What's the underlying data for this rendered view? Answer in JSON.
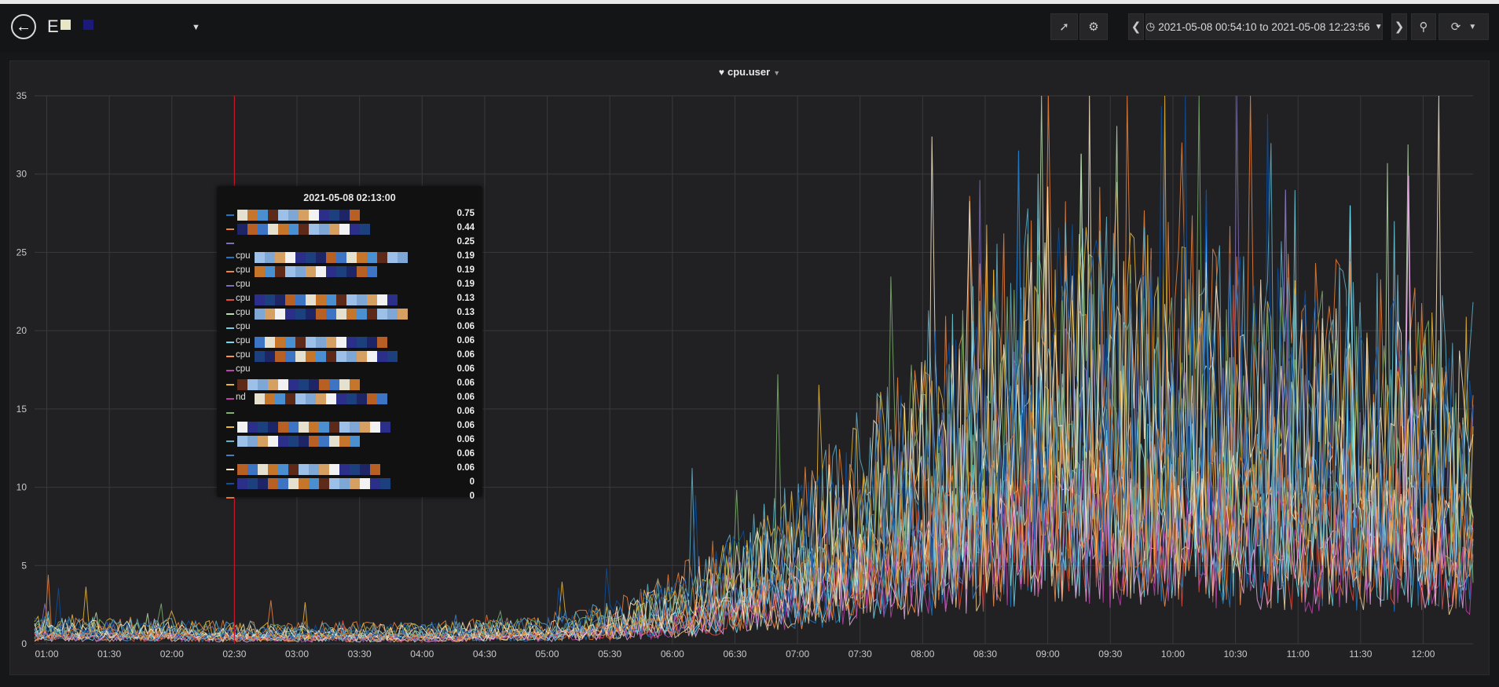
{
  "header": {
    "dashboard_title": "E",
    "time_range": "2021-05-08 00:54:10 to 2021-05-08 12:23:56"
  },
  "icons": {
    "back": "arrow-left-icon",
    "share": "share-icon",
    "settings": "gear-icon",
    "time_back": "chevron-left-icon",
    "clock": "clock-icon",
    "time_forward": "chevron-right-icon",
    "zoom_out": "zoom-out-icon",
    "refresh": "refresh-icon",
    "panel_title": "heart-icon"
  },
  "panel": {
    "title": "cpu.user"
  },
  "chart_data": {
    "type": "line",
    "title": "cpu.user",
    "xlabel": "",
    "ylabel": "",
    "x_range": [
      "2021-05-08 00:54:10",
      "2021-05-08 12:23:56"
    ],
    "ylim": [
      0,
      35
    ],
    "y_ticks": [
      0,
      5,
      10,
      15,
      20,
      25,
      30,
      35
    ],
    "x_ticks": [
      "01:00",
      "01:30",
      "02:00",
      "02:30",
      "03:00",
      "03:30",
      "04:00",
      "04:30",
      "05:00",
      "05:30",
      "06:00",
      "06:30",
      "07:00",
      "07:30",
      "08:00",
      "08:30",
      "09:00",
      "09:30",
      "10:00",
      "10:30",
      "11:00",
      "11:30",
      "12:00"
    ],
    "grid": true,
    "legend": "none",
    "crosshair_time": "2021-05-08 02:30",
    "series_colors": [
      "#1f78c1",
      "#ef843c",
      "#806eb7",
      "#e24d42",
      "#b7dbab",
      "#6ed0e0",
      "#70dbed",
      "#f9934e",
      "#e5a8e2",
      "#eab839",
      "#ba43a9",
      "#7eb26d",
      "#f4d598",
      "#64b0c8",
      "#447ebc",
      "#fceaca",
      "#0a50a1",
      "#e0752d"
    ],
    "series_profile_time": [
      "01:00",
      "02:00",
      "03:00",
      "04:00",
      "05:00",
      "05:30",
      "06:00",
      "06:30",
      "07:00",
      "07:30",
      "08:00",
      "08:30",
      "09:00",
      "09:30",
      "10:00",
      "10:30",
      "11:00",
      "11:30",
      "12:00",
      "12:20"
    ],
    "series_profile_value": [
      0.8,
      0.7,
      0.6,
      0.6,
      0.8,
      1.2,
      2.0,
      3.2,
      4.6,
      6.5,
      9.0,
      11.0,
      12.5,
      12.5,
      12.0,
      11.5,
      11.0,
      10.5,
      10.0,
      9.5
    ],
    "peaks": [
      {
        "time": "08:46",
        "value": 31.5
      },
      {
        "time": "09:16",
        "value": 31.3
      },
      {
        "time": "11:53",
        "value": 29.9
      },
      {
        "time": "09:00",
        "value": 29.2
      },
      {
        "time": "10:16",
        "value": 29.0
      },
      {
        "time": "10:54",
        "value": 29.0
      },
      {
        "time": "11:25",
        "value": 28.0
      }
    ]
  },
  "tooltip": {
    "time": "2021-05-08 02:13:00",
    "rows": [
      {
        "label": "",
        "value": "0.75",
        "color": "#1f78c1"
      },
      {
        "label": "",
        "value": "0.44",
        "color": "#ef843c"
      },
      {
        "label": "",
        "value": "0.25",
        "color": "#806eb7"
      },
      {
        "label": "cpu",
        "value": "0.19",
        "color": "#1f78c1"
      },
      {
        "label": "cpu",
        "value": "0.19",
        "color": "#ef843c"
      },
      {
        "label": "cpu",
        "value": "0.19",
        "color": "#806eb7"
      },
      {
        "label": "cpu",
        "value": "0.13",
        "color": "#e24d42"
      },
      {
        "label": "cpu",
        "value": "0.13",
        "color": "#b7dbab"
      },
      {
        "label": "cpu",
        "value": "0.06",
        "color": "#6ed0e0"
      },
      {
        "label": "cpu",
        "value": "0.06",
        "color": "#70dbed"
      },
      {
        "label": "cpu",
        "value": "0.06",
        "color": "#f9934e"
      },
      {
        "label": "cpu",
        "value": "0.06",
        "color": "#ba43a9"
      },
      {
        "label": "",
        "value": "0.06",
        "color": "#eab839"
      },
      {
        "label": "nd",
        "value": "0.06",
        "color": "#ba43a9"
      },
      {
        "label": "",
        "value": "0.06",
        "color": "#7eb26d"
      },
      {
        "label": "",
        "value": "0.06",
        "color": "#eab839"
      },
      {
        "label": "",
        "value": "0.06",
        "color": "#64b0c8"
      },
      {
        "label": "",
        "value": "0.06",
        "color": "#447ebc"
      },
      {
        "label": "",
        "value": "0.06",
        "color": "#fceaca"
      },
      {
        "label": "",
        "value": "0",
        "color": "#0a50a1"
      },
      {
        "label": "",
        "value": "0",
        "color": "#e0752d"
      }
    ]
  }
}
